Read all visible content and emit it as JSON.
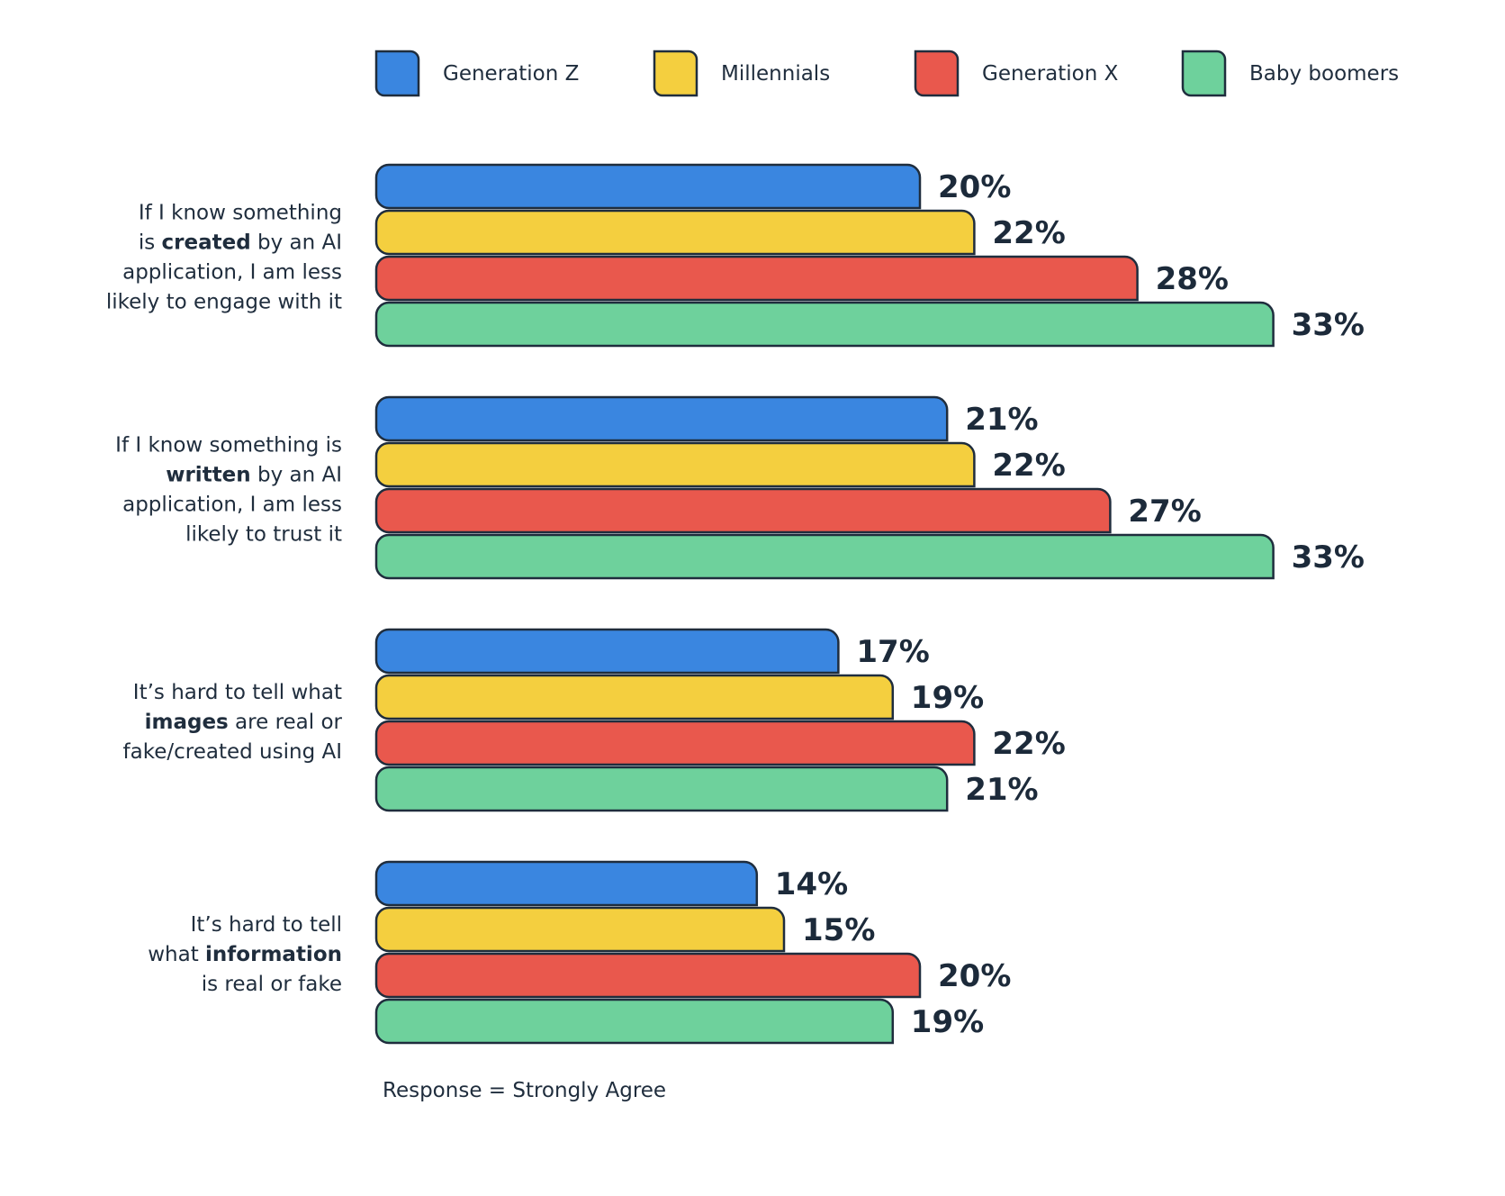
{
  "chart_data": {
    "type": "bar",
    "orientation": "horizontal",
    "legend_position": "top",
    "grid": false,
    "xlim": [
      0,
      35
    ],
    "categories": [
      [
        {
          "t": "If I know something",
          "b": false
        },
        {
          "t": "|is ",
          "b": false
        },
        {
          "t": "created",
          "b": true
        },
        {
          "t": " by an AI",
          "b": false
        },
        {
          "t": "|application, I am less",
          "b": false
        },
        {
          "t": "|likely to engage with it",
          "b": false
        }
      ],
      [
        {
          "t": "If I know something is",
          "b": false
        },
        {
          "t": "|",
          "b": false
        },
        {
          "t": "written",
          "b": true
        },
        {
          "t": " by an AI",
          "b": false
        },
        {
          "t": "|application, I am less",
          "b": false
        },
        {
          "t": "|likely to trust it",
          "b": false
        }
      ],
      [
        {
          "t": "It’s hard to tell what",
          "b": false
        },
        {
          "t": "|",
          "b": false
        },
        {
          "t": "images",
          "b": true
        },
        {
          "t": " are real or",
          "b": false
        },
        {
          "t": "|fake/created using AI",
          "b": false
        }
      ],
      [
        {
          "t": "It’s hard to tell",
          "b": false
        },
        {
          "t": "|what ",
          "b": false
        },
        {
          "t": "information",
          "b": true
        },
        {
          "t": "|is real or fake",
          "b": false
        }
      ]
    ],
    "series": [
      {
        "name": "Generation Z",
        "color": "#3a86e0",
        "values": [
          20,
          21,
          17,
          14
        ]
      },
      {
        "name": "Millennials",
        "color": "#f4cf3f",
        "values": [
          22,
          22,
          19,
          15
        ]
      },
      {
        "name": "Generation X",
        "color": "#e9584d",
        "values": [
          28,
          27,
          22,
          20
        ]
      },
      {
        "name": "Baby boomers",
        "color": "#6ed19c",
        "values": [
          33,
          33,
          21,
          19
        ]
      }
    ],
    "value_suffix": "%",
    "outline_color": "#1f2d3d"
  },
  "footnote": "Response = Strongly Agree"
}
